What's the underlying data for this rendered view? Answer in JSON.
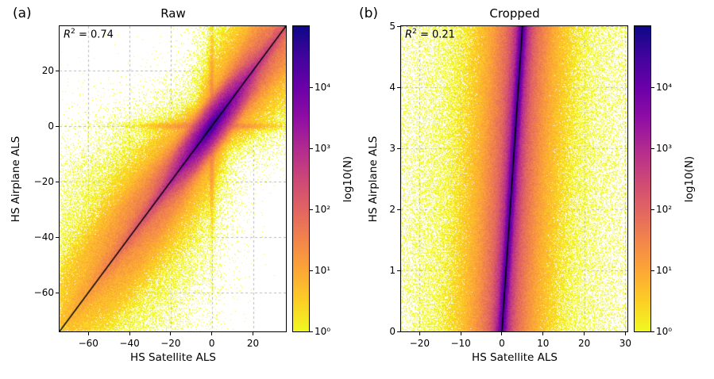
{
  "figure": {
    "background": "#ffffff"
  },
  "colormap": {
    "name": "plasma_r",
    "stops": [
      "#0d0887",
      "#41049d",
      "#6a00a8",
      "#8f0da4",
      "#b12a90",
      "#cc4778",
      "#e16462",
      "#f2844b",
      "#fca636",
      "#fcce25",
      "#f0f921"
    ]
  },
  "chart_data": [
    {
      "type": "heatmap",
      "subtype": "2d-density-scatter",
      "panel_label": "(a)",
      "title": "Raw",
      "annotation": {
        "var": "R",
        "sup": "2",
        "rest": " = 0.74"
      },
      "r_squared": 0.74,
      "xlabel": "HS Satellite ALS",
      "ylabel": "HS Airplane ALS",
      "xlim": [
        -74,
        36
      ],
      "ylim": [
        -74,
        36
      ],
      "xticks": [
        -60,
        -40,
        -20,
        0,
        20
      ],
      "yticks": [
        -60,
        -40,
        -20,
        0,
        20
      ],
      "grid": true,
      "identity_line": {
        "from": [
          -74,
          -74
        ],
        "to": [
          36,
          36
        ],
        "color": "#000000"
      },
      "colorbar": {
        "label": "log10(N)",
        "tick_labels": [
          "10⁰",
          "10¹",
          "10²",
          "10³",
          "10⁴"
        ],
        "tick_exponents": [
          0,
          1,
          2,
          3,
          4
        ],
        "log_range": [
          0,
          5
        ]
      },
      "density_model": [
        {
          "type": "core",
          "amp": 26000,
          "ts": 3.5,
          "ds": 1.0
        },
        {
          "type": "core",
          "amp": 6000,
          "ts": 8,
          "ds": 2.3
        },
        {
          "type": "ridge",
          "amp": 5200,
          "tau": 9,
          "d0": 0.5,
          "k": 0.03
        },
        {
          "type": "ridge",
          "amp": 420,
          "tau": 14,
          "d0": 1.7,
          "k": 0.12
        },
        {
          "type": "ridge",
          "amp": 28,
          "tau": 17,
          "d0": 4.2,
          "k": 0.28
        },
        {
          "type": "ridge",
          "amp": 2.4,
          "tau": 21,
          "d0": 8,
          "k": 0.35
        },
        {
          "type": "ridge",
          "amp": 0.32,
          "tau": 27,
          "d0": 13,
          "k": 0.42
        },
        {
          "type": "cross",
          "amp": 90,
          "tau": 8,
          "w": 0.6
        },
        {
          "type": "cross",
          "amp": 4,
          "tau": 13,
          "w": 1.3
        },
        {
          "type": "cross",
          "amp": 0.4,
          "tau": 17,
          "w": 2.8
        },
        {
          "type": "blob",
          "amp": 6,
          "cx": 30,
          "cy": 30,
          "sx": 5.5,
          "sy": 5.5
        },
        {
          "type": "blob",
          "amp": 0.7,
          "cx": 28,
          "cy": 28,
          "sx": 9,
          "sy": 9
        }
      ]
    },
    {
      "type": "heatmap",
      "subtype": "2d-density-scatter",
      "panel_label": "(b)",
      "title": "Cropped",
      "annotation": {
        "var": "R",
        "sup": "2",
        "rest": " = 0.21"
      },
      "r_squared": 0.21,
      "xlabel": "HS Satellite ALS",
      "ylabel": "HS Airplane ALS",
      "xlim": [
        -24.5,
        30.5
      ],
      "ylim": [
        0,
        5
      ],
      "xticks": [
        -20,
        -10,
        0,
        10,
        20,
        30
      ],
      "yticks": [
        0,
        1,
        2,
        3,
        4,
        5
      ],
      "grid": true,
      "identity_line": {
        "from": [
          0,
          0
        ],
        "to": [
          5,
          5
        ],
        "color": "#000000"
      },
      "colorbar": {
        "label": "log10(N)",
        "tick_labels": [
          "10⁰",
          "10¹",
          "10²",
          "10³",
          "10⁴"
        ],
        "tick_exponents": [
          0,
          1,
          2,
          3,
          4
        ],
        "log_range": [
          0,
          5
        ]
      },
      "density_model": [
        {
          "type": "vline",
          "amp": 16000,
          "s": 0.45
        },
        {
          "type": "vline",
          "amp": 1500,
          "s": 1.1
        },
        {
          "type": "vline",
          "amp": 150,
          "s": 2.6
        },
        {
          "type": "vline",
          "amp": 18,
          "s": 5
        },
        {
          "type": "vline",
          "amp": 2.2,
          "s": 9
        },
        {
          "type": "vline",
          "amp": 0.5,
          "s": 15
        },
        {
          "type": "uniform",
          "amp": 0.16
        }
      ]
    }
  ]
}
